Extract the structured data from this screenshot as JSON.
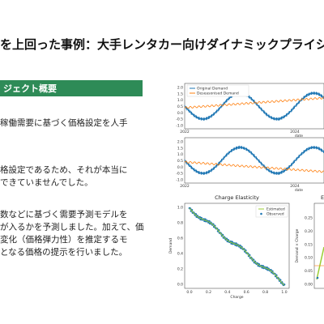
{
  "title": "を上回った事例：大手レンタカー向けダイナミックプライシ",
  "section": {
    "heading": "ジェクト概要",
    "paragraphs": [
      [
        "稼働需要に基づく価格設定を人手"
      ],
      [
        "格設定であるため、それが本当に",
        "できていませんでした。"
      ],
      [
        "数などに基づく需要予測モデルを",
        "が入るかを予測しました。加えて、価",
        "変化（価格弾力性）を推定するモ",
        "となる価格の提示を行いました。"
      ]
    ]
  },
  "figures": {
    "demand_top": {
      "legend": [
        "Original Demand",
        "Deseasonised Demand"
      ],
      "yticks": [
        "2.0",
        "1.5",
        "1.0",
        "0.5",
        "0.0",
        "-0.5",
        "-1.0"
      ],
      "xticks": [
        "2022",
        "2024"
      ],
      "xlabel": "date"
    },
    "demand_bottom": {
      "yticks": [
        "2.0",
        "1.5",
        "1.0",
        "0.5",
        "0.0",
        "-0.5",
        "-1.0"
      ],
      "xticks": [
        "2022",
        "2024"
      ],
      "xlabel": "date"
    },
    "elasticity": {
      "title": "Charge Elasticity",
      "legend": [
        "Estimated",
        "Observed"
      ],
      "yticks": [
        "1.0",
        "0.8",
        "0.6",
        "0.4",
        "0.2",
        "0.0"
      ],
      "xticks": [
        "0.0",
        "0.2",
        "0.4",
        "0.6",
        "0.8",
        "1.0"
      ],
      "xlabel": "Charge",
      "ylabel": "Demand"
    },
    "revenue": {
      "title": "E",
      "yticks": [
        "0.25",
        "0.20",
        "0.15",
        "0.10",
        "0.05",
        "0.00"
      ],
      "ylabel": "Demand × Charge"
    }
  }
}
